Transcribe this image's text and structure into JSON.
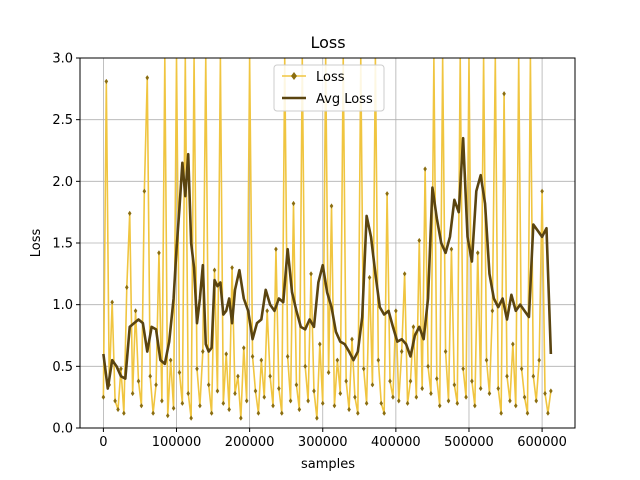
{
  "chart_data": {
    "type": "line",
    "title": "Loss",
    "xlabel": "samples",
    "ylabel": "Loss",
    "xlim": [
      -32000,
      645000
    ],
    "ylim": [
      0.0,
      3.0
    ],
    "xticks": [
      0,
      100000,
      200000,
      300000,
      400000,
      500000,
      600000
    ],
    "xtick_labels": [
      "0",
      "100000",
      "200000",
      "300000",
      "400000",
      "500000",
      "600000"
    ],
    "yticks": [
      0.0,
      0.5,
      1.0,
      1.5,
      2.0,
      2.5,
      3.0
    ],
    "ytick_labels": [
      "0.0",
      "0.5",
      "1.0",
      "1.5",
      "2.0",
      "2.5",
      "3.0"
    ],
    "grid": true,
    "legend_position": "top-center",
    "colors": {
      "loss": "#f0c540",
      "loss_marker": "#8a6d10",
      "avg": "#5a4410",
      "grid": "#b0b0b0"
    },
    "series": [
      {
        "name": "Loss",
        "style": "line-with-markers",
        "x": [
          0,
          4000,
          8000,
          12000,
          16000,
          20000,
          24000,
          28000,
          32000,
          36000,
          40000,
          44000,
          48000,
          52000,
          56000,
          60000,
          64000,
          68000,
          72000,
          76000,
          80000,
          84000,
          88000,
          92000,
          96000,
          100000,
          104000,
          108000,
          112000,
          116000,
          120000,
          124000,
          128000,
          132000,
          136000,
          140000,
          144000,
          148000,
          152000,
          156000,
          160000,
          164000,
          168000,
          172000,
          176000,
          180000,
          184000,
          188000,
          192000,
          196000,
          200000,
          204000,
          208000,
          212000,
          216000,
          220000,
          224000,
          228000,
          232000,
          236000,
          240000,
          244000,
          248000,
          252000,
          256000,
          260000,
          264000,
          268000,
          272000,
          276000,
          280000,
          284000,
          288000,
          292000,
          296000,
          300000,
          304000,
          308000,
          312000,
          316000,
          320000,
          324000,
          328000,
          332000,
          336000,
          340000,
          344000,
          348000,
          352000,
          356000,
          360000,
          364000,
          368000,
          372000,
          376000,
          380000,
          384000,
          388000,
          392000,
          396000,
          400000,
          404000,
          408000,
          412000,
          416000,
          420000,
          424000,
          428000,
          432000,
          436000,
          440000,
          444000,
          448000,
          452000,
          456000,
          460000,
          464000,
          468000,
          472000,
          476000,
          480000,
          484000,
          488000,
          492000,
          496000,
          500000,
          504000,
          508000,
          512000,
          516000,
          520000,
          524000,
          528000,
          532000,
          536000,
          540000,
          544000,
          548000,
          552000,
          556000,
          560000,
          564000,
          568000,
          572000,
          576000,
          580000,
          584000,
          588000,
          592000,
          596000,
          600000,
          604000,
          608000,
          612000
        ],
        "values": [
          0.25,
          2.81,
          0.35,
          1.02,
          0.22,
          0.15,
          0.48,
          0.12,
          1.14,
          1.74,
          0.28,
          0.95,
          0.38,
          0.18,
          1.92,
          2.84,
          0.42,
          0.12,
          0.35,
          1.42,
          0.22,
          3.0,
          0.1,
          0.55,
          0.16,
          3.0,
          0.45,
          0.2,
          3.0,
          0.28,
          0.08,
          3.0,
          0.48,
          0.18,
          0.62,
          3.0,
          0.35,
          0.12,
          1.28,
          0.3,
          3.0,
          0.2,
          0.6,
          0.15,
          1.3,
          0.28,
          0.42,
          0.08,
          0.65,
          0.22,
          3.0,
          0.58,
          0.3,
          0.12,
          0.55,
          0.25,
          0.95,
          0.42,
          0.18,
          1.45,
          0.32,
          0.12,
          3.0,
          0.58,
          0.22,
          1.82,
          0.35,
          0.15,
          3.0,
          0.5,
          0.22,
          1.25,
          0.3,
          0.08,
          0.68,
          0.2,
          3.0,
          0.45,
          1.8,
          0.18,
          0.55,
          0.28,
          3.0,
          0.38,
          0.15,
          0.72,
          0.25,
          0.12,
          3.0,
          0.48,
          0.2,
          1.22,
          0.35,
          3.0,
          0.55,
          0.2,
          0.12,
          1.9,
          0.38,
          0.25,
          0.95,
          0.22,
          0.62,
          1.25,
          0.2,
          0.38,
          0.82,
          0.25,
          1.52,
          0.32,
          2.1,
          0.5,
          0.28,
          3.0,
          0.4,
          0.18,
          3.0,
          0.62,
          0.22,
          1.45,
          0.35,
          0.2,
          3.0,
          0.48,
          0.25,
          3.0,
          0.38,
          0.18,
          1.42,
          0.32,
          3.0,
          0.55,
          0.28,
          0.95,
          3.0,
          0.32,
          0.12,
          2.71,
          0.42,
          0.22,
          0.68,
          0.18,
          3.0,
          0.48,
          0.25,
          0.12,
          3.0,
          0.42,
          0.22,
          0.55,
          1.92,
          0.28,
          0.12,
          0.3
        ]
      },
      {
        "name": "Avg Loss",
        "style": "line",
        "x": [
          0,
          6000,
          12000,
          18000,
          24000,
          30000,
          36000,
          42000,
          48000,
          54000,
          60000,
          66000,
          72000,
          78000,
          84000,
          90000,
          96000,
          100000,
          104000,
          108000,
          112000,
          116000,
          120000,
          124000,
          128000,
          132000,
          136000,
          140000,
          144000,
          148000,
          152000,
          156000,
          160000,
          164000,
          168000,
          172000,
          176000,
          180000,
          186000,
          192000,
          198000,
          204000,
          210000,
          216000,
          222000,
          228000,
          234000,
          240000,
          246000,
          252000,
          258000,
          264000,
          270000,
          276000,
          282000,
          288000,
          294000,
          300000,
          306000,
          312000,
          318000,
          324000,
          330000,
          336000,
          342000,
          348000,
          354000,
          360000,
          366000,
          372000,
          378000,
          384000,
          390000,
          396000,
          402000,
          408000,
          414000,
          420000,
          426000,
          432000,
          438000,
          444000,
          450000,
          456000,
          462000,
          468000,
          474000,
          480000,
          486000,
          492000,
          498000,
          504000,
          510000,
          516000,
          522000,
          528000,
          534000,
          540000,
          546000,
          552000,
          558000,
          564000,
          570000,
          576000,
          582000,
          588000,
          594000,
          600000,
          606000,
          612000
        ],
        "values": [
          0.6,
          0.32,
          0.55,
          0.5,
          0.42,
          0.4,
          0.82,
          0.85,
          0.88,
          0.85,
          0.62,
          0.82,
          0.8,
          0.55,
          0.52,
          0.7,
          1.05,
          1.45,
          1.78,
          2.15,
          1.88,
          2.22,
          1.5,
          1.3,
          0.85,
          1.05,
          1.32,
          0.68,
          0.62,
          0.65,
          1.2,
          1.15,
          1.18,
          0.92,
          0.95,
          1.05,
          0.85,
          1.12,
          1.28,
          1.05,
          0.95,
          0.72,
          0.85,
          0.88,
          1.12,
          1.0,
          0.95,
          1.05,
          1.02,
          1.45,
          1.1,
          0.95,
          0.82,
          0.8,
          0.88,
          0.82,
          1.18,
          1.32,
          1.1,
          0.98,
          0.78,
          0.7,
          0.68,
          0.62,
          0.55,
          0.62,
          0.9,
          1.72,
          1.55,
          1.25,
          0.98,
          0.92,
          0.95,
          0.82,
          0.7,
          0.72,
          0.68,
          0.58,
          0.75,
          0.82,
          0.72,
          1.05,
          1.95,
          1.7,
          1.5,
          1.42,
          1.55,
          1.85,
          1.75,
          2.35,
          1.55,
          1.35,
          1.92,
          2.05,
          1.82,
          1.25,
          1.05,
          0.98,
          1.05,
          0.88,
          1.08,
          0.95,
          1.0,
          0.95,
          0.9,
          1.65,
          1.6,
          1.55,
          1.62,
          0.6
        ]
      }
    ]
  }
}
